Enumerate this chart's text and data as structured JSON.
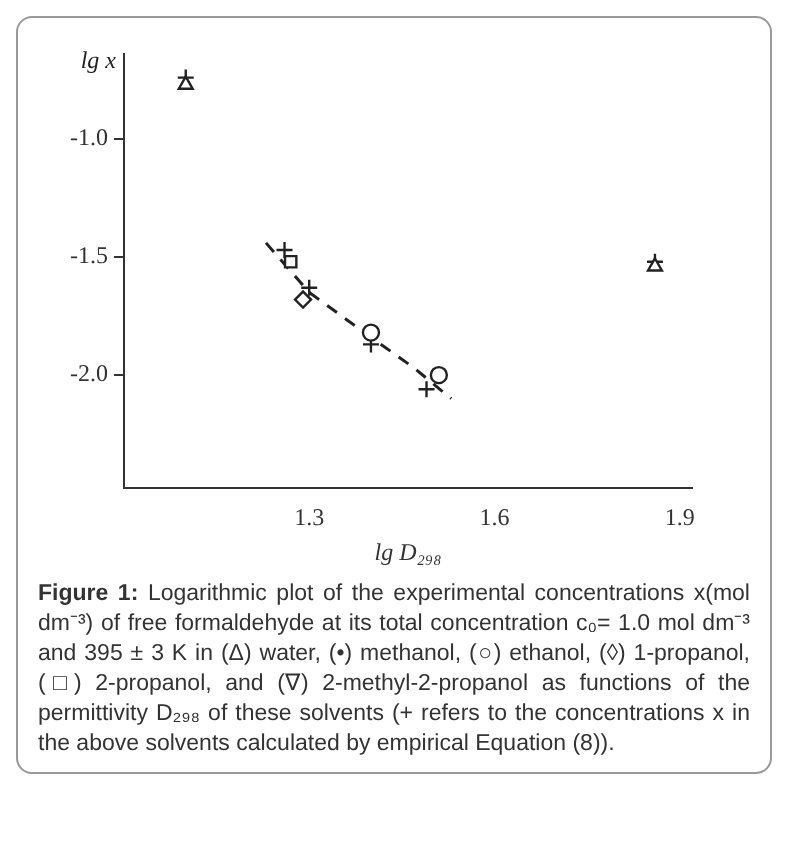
{
  "chart_data": {
    "type": "scatter",
    "xlabel": "lg D₂₉₈",
    "ylabel": "lg x",
    "xlim": [
      1.0,
      1.92
    ],
    "ylim": [
      -2.48,
      -0.64
    ],
    "xticks": [
      1.3,
      1.6,
      1.9
    ],
    "yticks": [
      {
        "value": -1,
        "label": "-1.0"
      },
      {
        "value": -1.5,
        "label": "-1.5"
      },
      {
        "value": -2,
        "label": "-2.0"
      }
    ],
    "grid": false,
    "legend": false,
    "series": [
      {
        "type": "scatter",
        "marker": "triangle",
        "color": "#222222",
        "x": [
          1.86
        ],
        "values": [
          -1.54
        ]
      },
      {
        "type": "scatter",
        "marker": "circle",
        "color": "#222222",
        "x": [
          1.51
        ],
        "values": [
          -2.0
        ]
      },
      {
        "type": "scatter",
        "marker": "circle",
        "color": "#222222",
        "x": [
          1.4
        ],
        "values": [
          -1.82
        ]
      },
      {
        "type": "scatter",
        "marker": "diamond",
        "color": "#222222",
        "x": [
          1.29
        ],
        "values": [
          -1.68
        ]
      },
      {
        "type": "scatter",
        "marker": "square",
        "color": "#222222",
        "x": [
          1.27
        ],
        "values": [
          -1.52
        ]
      },
      {
        "type": "scatter",
        "marker": "triangle",
        "color": "#222222",
        "x": [
          1.1
        ],
        "values": [
          -0.77
        ]
      },
      {
        "type": "scatter",
        "marker": "cross",
        "color": "#222222",
        "x": [
          1.86,
          1.49,
          1.4,
          1.3,
          1.26,
          1.1
        ],
        "values": [
          -1.52,
          -2.06,
          -1.87,
          -1.63,
          -1.47,
          -0.74
        ]
      },
      {
        "type": "line",
        "marker": "none",
        "line_style": "dashed",
        "color": "#222222",
        "x": [
          1.23,
          1.3,
          1.4,
          1.47,
          1.53
        ],
        "values": [
          -1.44,
          -1.65,
          -1.84,
          -1.97,
          -2.1
        ]
      }
    ],
    "annotations": [
      "Figure 1:",
      "Logarithmic plot of the experimental concentrations x(mol dm⁻³) of free formaldehyde at its total concentration c₀= 1.0 mol dm⁻³ and 395 ± 3 K in (Δ) water, (•) methanol, (○) ethanol, (◊) 1-propanol, (□) 2-propanol, and (∇) 2-methyl-2-propanol as functions of the permittivity D₂₉₈ of these solvents (+ refers to the concentrations x in the above solvents calculated by empirical Equation (8))."
    ]
  }
}
